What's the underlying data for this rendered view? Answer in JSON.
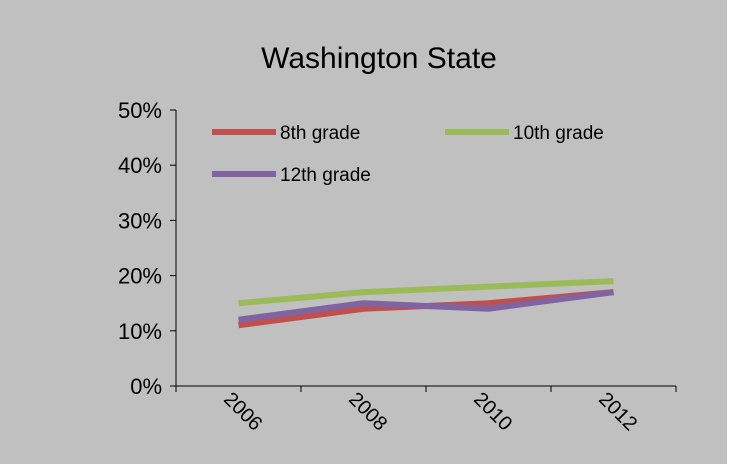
{
  "chart_data": {
    "type": "line",
    "title": "Washington State",
    "xlabel": "",
    "ylabel": "",
    "categories": [
      "2006",
      "2008",
      "2010",
      "2012"
    ],
    "ylim": [
      0,
      50
    ],
    "yticks": [
      "0%",
      "10%",
      "20%",
      "30%",
      "40%",
      "50%"
    ],
    "grid": false,
    "legend_position": "top",
    "background": "#c0c0c0",
    "series": [
      {
        "name": "8th grade",
        "color": "#c0504d",
        "values": [
          11,
          14,
          15,
          17
        ]
      },
      {
        "name": "10th grade",
        "color": "#9bbb59",
        "values": [
          15,
          17,
          18,
          19
        ]
      },
      {
        "name": "12th grade",
        "color": "#8064a2",
        "values": [
          12,
          15,
          14,
          17
        ]
      }
    ]
  }
}
